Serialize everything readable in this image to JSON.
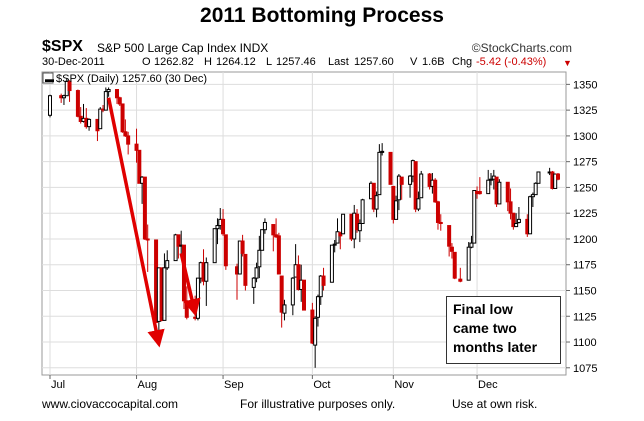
{
  "header": {
    "title": "2011 Bottoming Process",
    "symbol": "$SPX",
    "name": "S&P 500 Large Cap Index",
    "exchange": "INDX",
    "watermark": "©StockCharts.com"
  },
  "quote": {
    "date": "30-Dec-2011",
    "open_label": "O",
    "open": "1262.82",
    "high_label": "H",
    "high": "1264.12",
    "low_label": "L",
    "low": "1257.46",
    "last_label": "Last",
    "last": "1257.60",
    "volume_label": "V",
    "volume": "1.6B",
    "chg_label": "Chg",
    "chg": "-5.42 (-0.43%)"
  },
  "legend": {
    "label": "$SPX (Daily) 1257.60 (30 Dec)"
  },
  "annotation": {
    "lines": [
      "Final low",
      "came two",
      "months later"
    ]
  },
  "footer": {
    "left": "www.ciovaccocapital.com",
    "center": "For illustrative purposes only.",
    "right": "Use at own risk."
  },
  "colors": {
    "up_candle": "#000000",
    "down_candle": "#cc0000",
    "arrow": "#e00000",
    "grid": "#dddddd"
  },
  "chart_data": {
    "type": "candlestick",
    "x_tick_labels": [
      "Jul",
      "Aug",
      "Sep",
      "Oct",
      "Nov",
      "Dec"
    ],
    "y_ticks": [
      1075,
      1100,
      1125,
      1150,
      1175,
      1200,
      1225,
      1250,
      1275,
      1300,
      1325,
      1350
    ],
    "ylim": [
      1068,
      1362
    ],
    "x_start": "2011-07-01",
    "x_end": "2011-12-30",
    "grid": true,
    "ohlc": [
      {
        "d": "2011-07-01",
        "o": 1320,
        "h": 1340,
        "l": 1318,
        "c": 1339
      },
      {
        "d": "2011-07-05",
        "o": 1339,
        "h": 1341,
        "l": 1332,
        "c": 1337
      },
      {
        "d": "2011-07-06",
        "o": 1337,
        "h": 1340,
        "l": 1330,
        "c": 1339
      },
      {
        "d": "2011-07-07",
        "o": 1339,
        "h": 1356,
        "l": 1339,
        "c": 1353
      },
      {
        "d": "2011-07-08",
        "o": 1353,
        "h": 1354,
        "l": 1333,
        "c": 1344
      },
      {
        "d": "2011-07-11",
        "o": 1344,
        "h": 1345,
        "l": 1318,
        "c": 1319
      },
      {
        "d": "2011-07-12",
        "o": 1319,
        "h": 1328,
        "l": 1312,
        "c": 1314
      },
      {
        "d": "2011-07-13",
        "o": 1314,
        "h": 1331,
        "l": 1313,
        "c": 1317
      },
      {
        "d": "2011-07-14",
        "o": 1317,
        "h": 1327,
        "l": 1307,
        "c": 1309
      },
      {
        "d": "2011-07-15",
        "o": 1309,
        "h": 1317,
        "l": 1305,
        "c": 1316
      },
      {
        "d": "2011-07-18",
        "o": 1316,
        "h": 1316,
        "l": 1295,
        "c": 1305
      },
      {
        "d": "2011-07-19",
        "o": 1307,
        "h": 1328,
        "l": 1307,
        "c": 1326
      },
      {
        "d": "2011-07-20",
        "o": 1326,
        "h": 1330,
        "l": 1323,
        "c": 1325
      },
      {
        "d": "2011-07-21",
        "o": 1325,
        "h": 1347,
        "l": 1325,
        "c": 1343
      },
      {
        "d": "2011-07-22",
        "o": 1343,
        "h": 1347,
        "l": 1338,
        "c": 1345
      },
      {
        "d": "2011-07-25",
        "o": 1345,
        "h": 1345,
        "l": 1331,
        "c": 1337
      },
      {
        "d": "2011-07-26",
        "o": 1337,
        "h": 1338,
        "l": 1329,
        "c": 1331
      },
      {
        "d": "2011-07-27",
        "o": 1331,
        "h": 1331,
        "l": 1303,
        "c": 1304
      },
      {
        "d": "2011-07-28",
        "o": 1304,
        "h": 1316,
        "l": 1299,
        "c": 1300
      },
      {
        "d": "2011-07-29",
        "o": 1300,
        "h": 1304,
        "l": 1282,
        "c": 1292
      },
      {
        "d": "2011-08-01",
        "o": 1292,
        "h": 1307,
        "l": 1274,
        "c": 1286
      },
      {
        "d": "2011-08-02",
        "o": 1286,
        "h": 1286,
        "l": 1254,
        "c": 1254
      },
      {
        "d": "2011-08-03",
        "o": 1254,
        "h": 1261,
        "l": 1234,
        "c": 1260
      },
      {
        "d": "2011-08-04",
        "o": 1260,
        "h": 1260,
        "l": 1199,
        "c": 1200
      },
      {
        "d": "2011-08-05",
        "o": 1200,
        "h": 1214,
        "l": 1168,
        "c": 1199
      },
      {
        "d": "2011-08-08",
        "o": 1199,
        "h": 1199,
        "l": 1119,
        "c": 1119
      },
      {
        "d": "2011-08-09",
        "o": 1120,
        "h": 1172,
        "l": 1101,
        "c": 1172
      },
      {
        "d": "2011-08-10",
        "o": 1172,
        "h": 1172,
        "l": 1120,
        "c": 1121
      },
      {
        "d": "2011-08-11",
        "o": 1121,
        "h": 1186,
        "l": 1121,
        "c": 1172
      },
      {
        "d": "2011-08-12",
        "o": 1172,
        "h": 1189,
        "l": 1170,
        "c": 1179
      },
      {
        "d": "2011-08-15",
        "o": 1179,
        "h": 1205,
        "l": 1179,
        "c": 1204
      },
      {
        "d": "2011-08-16",
        "o": 1204,
        "h": 1204,
        "l": 1181,
        "c": 1193
      },
      {
        "d": "2011-08-17",
        "o": 1193,
        "h": 1208,
        "l": 1184,
        "c": 1194
      },
      {
        "d": "2011-08-18",
        "o": 1194,
        "h": 1194,
        "l": 1132,
        "c": 1140
      },
      {
        "d": "2011-08-19",
        "o": 1140,
        "h": 1154,
        "l": 1122,
        "c": 1124
      },
      {
        "d": "2011-08-22",
        "o": 1124,
        "h": 1145,
        "l": 1121,
        "c": 1123
      },
      {
        "d": "2011-08-23",
        "o": 1123,
        "h": 1162,
        "l": 1121,
        "c": 1162
      },
      {
        "d": "2011-08-24",
        "o": 1162,
        "h": 1178,
        "l": 1157,
        "c": 1177
      },
      {
        "d": "2011-08-25",
        "o": 1177,
        "h": 1190,
        "l": 1155,
        "c": 1159
      },
      {
        "d": "2011-08-26",
        "o": 1159,
        "h": 1182,
        "l": 1135,
        "c": 1177
      },
      {
        "d": "2011-08-29",
        "o": 1177,
        "h": 1210,
        "l": 1177,
        "c": 1210
      },
      {
        "d": "2011-08-30",
        "o": 1210,
        "h": 1220,
        "l": 1195,
        "c": 1213
      },
      {
        "d": "2011-08-31",
        "o": 1213,
        "h": 1230,
        "l": 1209,
        "c": 1219
      },
      {
        "d": "2011-09-01",
        "o": 1219,
        "h": 1229,
        "l": 1203,
        "c": 1205
      },
      {
        "d": "2011-09-02",
        "o": 1204,
        "h": 1204,
        "l": 1170,
        "c": 1174
      },
      {
        "d": "2011-09-06",
        "o": 1173,
        "h": 1176,
        "l": 1141,
        "c": 1166
      },
      {
        "d": "2011-09-07",
        "o": 1166,
        "h": 1198,
        "l": 1166,
        "c": 1198
      },
      {
        "d": "2011-09-08",
        "o": 1198,
        "h": 1204,
        "l": 1183,
        "c": 1186
      },
      {
        "d": "2011-09-09",
        "o": 1185,
        "h": 1185,
        "l": 1150,
        "c": 1155
      },
      {
        "d": "2011-09-12",
        "o": 1153,
        "h": 1163,
        "l": 1137,
        "c": 1162
      },
      {
        "d": "2011-09-13",
        "o": 1162,
        "h": 1177,
        "l": 1158,
        "c": 1172
      },
      {
        "d": "2011-09-14",
        "o": 1173,
        "h": 1203,
        "l": 1162,
        "c": 1189
      },
      {
        "d": "2011-09-15",
        "o": 1189,
        "h": 1209,
        "l": 1189,
        "c": 1209
      },
      {
        "d": "2011-09-16",
        "o": 1209,
        "h": 1220,
        "l": 1205,
        "c": 1216
      },
      {
        "d": "2011-09-19",
        "o": 1214,
        "h": 1214,
        "l": 1188,
        "c": 1204
      },
      {
        "d": "2011-09-20",
        "o": 1204,
        "h": 1220,
        "l": 1201,
        "c": 1202
      },
      {
        "d": "2011-09-21",
        "o": 1203,
        "h": 1206,
        "l": 1166,
        "c": 1166
      },
      {
        "d": "2011-09-22",
        "o": 1164,
        "h": 1164,
        "l": 1114,
        "c": 1129
      },
      {
        "d": "2011-09-23",
        "o": 1128,
        "h": 1141,
        "l": 1121,
        "c": 1136
      },
      {
        "d": "2011-09-26",
        "o": 1136,
        "h": 1163,
        "l": 1126,
        "c": 1162
      },
      {
        "d": "2011-09-27",
        "o": 1163,
        "h": 1195,
        "l": 1163,
        "c": 1175
      },
      {
        "d": "2011-09-28",
        "o": 1175,
        "h": 1184,
        "l": 1150,
        "c": 1151
      },
      {
        "d": "2011-09-29",
        "o": 1151,
        "h": 1175,
        "l": 1139,
        "c": 1160
      },
      {
        "d": "2011-09-30",
        "o": 1160,
        "h": 1160,
        "l": 1131,
        "c": 1131
      },
      {
        "d": "2011-10-03",
        "o": 1131,
        "h": 1138,
        "l": 1098,
        "c": 1099
      },
      {
        "d": "2011-10-04",
        "o": 1097,
        "h": 1125,
        "l": 1075,
        "c": 1123
      },
      {
        "d": "2011-10-05",
        "o": 1124,
        "h": 1146,
        "l": 1115,
        "c": 1144
      },
      {
        "d": "2011-10-06",
        "o": 1144,
        "h": 1165,
        "l": 1136,
        "c": 1164
      },
      {
        "d": "2011-10-07",
        "o": 1164,
        "h": 1172,
        "l": 1150,
        "c": 1155
      },
      {
        "d": "2011-10-10",
        "o": 1158,
        "h": 1194,
        "l": 1158,
        "c": 1194
      },
      {
        "d": "2011-10-11",
        "o": 1194,
        "h": 1199,
        "l": 1187,
        "c": 1195
      },
      {
        "d": "2011-10-12",
        "o": 1196,
        "h": 1220,
        "l": 1196,
        "c": 1207
      },
      {
        "d": "2011-10-13",
        "o": 1206,
        "h": 1207,
        "l": 1190,
        "c": 1203
      },
      {
        "d": "2011-10-14",
        "o": 1205,
        "h": 1224,
        "l": 1205,
        "c": 1224
      },
      {
        "d": "2011-10-17",
        "o": 1224,
        "h": 1224,
        "l": 1198,
        "c": 1200
      },
      {
        "d": "2011-10-18",
        "o": 1200,
        "h": 1233,
        "l": 1191,
        "c": 1225
      },
      {
        "d": "2011-10-19",
        "o": 1224,
        "h": 1229,
        "l": 1206,
        "c": 1209
      },
      {
        "d": "2011-10-20",
        "o": 1208,
        "h": 1219,
        "l": 1197,
        "c": 1215
      },
      {
        "d": "2011-10-21",
        "o": 1215,
        "h": 1239,
        "l": 1215,
        "c": 1238
      },
      {
        "d": "2011-10-24",
        "o": 1239,
        "h": 1256,
        "l": 1239,
        "c": 1254
      },
      {
        "d": "2011-10-25",
        "o": 1254,
        "h": 1254,
        "l": 1226,
        "c": 1229
      },
      {
        "d": "2011-10-26",
        "o": 1229,
        "h": 1246,
        "l": 1221,
        "c": 1242
      },
      {
        "d": "2011-10-27",
        "o": 1243,
        "h": 1292,
        "l": 1243,
        "c": 1284
      },
      {
        "d": "2011-10-28",
        "o": 1284,
        "h": 1293,
        "l": 1281,
        "c": 1285
      },
      {
        "d": "2011-10-31",
        "o": 1284,
        "h": 1284,
        "l": 1253,
        "c": 1253
      },
      {
        "d": "2011-11-01",
        "o": 1251,
        "h": 1251,
        "l": 1215,
        "c": 1219
      },
      {
        "d": "2011-11-02",
        "o": 1219,
        "h": 1242,
        "l": 1219,
        "c": 1237
      },
      {
        "d": "2011-11-03",
        "o": 1238,
        "h": 1263,
        "l": 1228,
        "c": 1261
      },
      {
        "d": "2011-11-04",
        "o": 1260,
        "h": 1260,
        "l": 1238,
        "c": 1253
      },
      {
        "d": "2011-11-07",
        "o": 1253,
        "h": 1262,
        "l": 1240,
        "c": 1261
      },
      {
        "d": "2011-11-08",
        "o": 1261,
        "h": 1277,
        "l": 1255,
        "c": 1276
      },
      {
        "d": "2011-11-09",
        "o": 1275,
        "h": 1275,
        "l": 1226,
        "c": 1229
      },
      {
        "d": "2011-11-10",
        "o": 1229,
        "h": 1246,
        "l": 1227,
        "c": 1239
      },
      {
        "d": "2011-11-11",
        "o": 1240,
        "h": 1266,
        "l": 1240,
        "c": 1263
      },
      {
        "d": "2011-11-14",
        "o": 1263,
        "h": 1264,
        "l": 1248,
        "c": 1251
      },
      {
        "d": "2011-11-15",
        "o": 1251,
        "h": 1264,
        "l": 1244,
        "c": 1257
      },
      {
        "d": "2011-11-16",
        "o": 1257,
        "h": 1259,
        "l": 1235,
        "c": 1236
      },
      {
        "d": "2011-11-17",
        "o": 1236,
        "h": 1237,
        "l": 1209,
        "c": 1216
      },
      {
        "d": "2011-11-18",
        "o": 1216,
        "h": 1224,
        "l": 1208,
        "c": 1215
      },
      {
        "d": "2011-11-21",
        "o": 1213,
        "h": 1213,
        "l": 1183,
        "c": 1193
      },
      {
        "d": "2011-11-22",
        "o": 1192,
        "h": 1196,
        "l": 1181,
        "c": 1188
      },
      {
        "d": "2011-11-23",
        "o": 1187,
        "h": 1187,
        "l": 1161,
        "c": 1162
      },
      {
        "d": "2011-11-25",
        "o": 1161,
        "h": 1172,
        "l": 1158,
        "c": 1159
      },
      {
        "d": "2011-11-28",
        "o": 1160,
        "h": 1197,
        "l": 1160,
        "c": 1192
      },
      {
        "d": "2011-11-29",
        "o": 1192,
        "h": 1203,
        "l": 1191,
        "c": 1196
      },
      {
        "d": "2011-11-30",
        "o": 1196,
        "h": 1247,
        "l": 1196,
        "c": 1247
      },
      {
        "d": "2011-12-01",
        "o": 1246,
        "h": 1251,
        "l": 1239,
        "c": 1244
      },
      {
        "d": "2011-12-02",
        "o": 1246,
        "h": 1260,
        "l": 1243,
        "c": 1244
      },
      {
        "d": "2011-12-05",
        "o": 1244,
        "h": 1267,
        "l": 1244,
        "c": 1257
      },
      {
        "d": "2011-12-06",
        "o": 1257,
        "h": 1264,
        "l": 1252,
        "c": 1258
      },
      {
        "d": "2011-12-07",
        "o": 1258,
        "h": 1267,
        "l": 1248,
        "c": 1261
      },
      {
        "d": "2011-12-08",
        "o": 1260,
        "h": 1260,
        "l": 1231,
        "c": 1234
      },
      {
        "d": "2011-12-09",
        "o": 1234,
        "h": 1258,
        "l": 1234,
        "c": 1255
      },
      {
        "d": "2011-12-12",
        "o": 1255,
        "h": 1255,
        "l": 1227,
        "c": 1236
      },
      {
        "d": "2011-12-13",
        "o": 1236,
        "h": 1249,
        "l": 1219,
        "c": 1225
      },
      {
        "d": "2011-12-14",
        "o": 1225,
        "h": 1225,
        "l": 1209,
        "c": 1212
      },
      {
        "d": "2011-12-15",
        "o": 1212,
        "h": 1225,
        "l": 1212,
        "c": 1215
      },
      {
        "d": "2011-12-16",
        "o": 1216,
        "h": 1231,
        "l": 1215,
        "c": 1219
      },
      {
        "d": "2011-12-19",
        "o": 1219,
        "h": 1224,
        "l": 1202,
        "c": 1205
      },
      {
        "d": "2011-12-20",
        "o": 1205,
        "h": 1242,
        "l": 1205,
        "c": 1241
      },
      {
        "d": "2011-12-21",
        "o": 1241,
        "h": 1245,
        "l": 1231,
        "c": 1243
      },
      {
        "d": "2011-12-22",
        "o": 1243,
        "h": 1255,
        "l": 1243,
        "c": 1254
      },
      {
        "d": "2011-12-23",
        "o": 1254,
        "h": 1265,
        "l": 1254,
        "c": 1265
      },
      {
        "d": "2011-12-27",
        "o": 1265,
        "h": 1269,
        "l": 1262,
        "c": 1265
      },
      {
        "d": "2011-12-28",
        "o": 1265,
        "h": 1266,
        "l": 1248,
        "c": 1249
      },
      {
        "d": "2011-12-29",
        "o": 1249,
        "h": 1263,
        "l": 1249,
        "c": 1263
      },
      {
        "d": "2011-12-30",
        "o": 1263,
        "h": 1264,
        "l": 1257,
        "c": 1258
      }
    ],
    "annotation_arrows": [
      {
        "from": {
          "d": "2011-07-22",
          "v": 1337
        },
        "to": {
          "d": "2011-08-09",
          "v": 1098
        }
      },
      {
        "from": {
          "d": "2011-08-17",
          "v": 1186
        },
        "to": {
          "d": "2011-08-22",
          "v": 1128
        }
      }
    ]
  }
}
